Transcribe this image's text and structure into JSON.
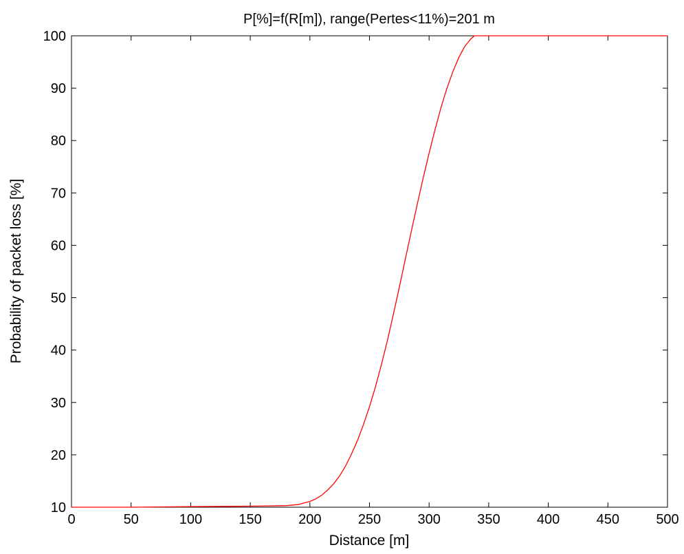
{
  "chart_data": {
    "type": "line",
    "title": "P[%]=f(R[m]), range(Pertes<11%)=201 m",
    "xlabel": "Distance [m]",
    "ylabel": "Probability of packet loss [%]",
    "xlim": [
      0,
      500
    ],
    "ylim": [
      10,
      100
    ],
    "xticks": [
      0,
      50,
      100,
      150,
      200,
      250,
      300,
      350,
      400,
      450,
      500
    ],
    "yticks": [
      10,
      20,
      30,
      40,
      50,
      60,
      70,
      80,
      90,
      100
    ],
    "grid": false,
    "legend": "none",
    "colors": {
      "series": "#ff0000",
      "axes": "#000000",
      "background": "#ffffff"
    },
    "series": [
      {
        "x": [
          0,
          50,
          100,
          150,
          180,
          190,
          195,
          200,
          205,
          210,
          215,
          220,
          225,
          230,
          235,
          240,
          245,
          250,
          255,
          260,
          265,
          270,
          275,
          280,
          285,
          290,
          295,
          300,
          305,
          310,
          315,
          320,
          325,
          330,
          335,
          338,
          340,
          350,
          400,
          450,
          500
        ],
        "y": [
          10,
          10,
          10.1,
          10.2,
          10.3,
          10.5,
          10.8,
          11.1,
          11.6,
          12.3,
          13.3,
          14.5,
          16.0,
          17.9,
          20.2,
          22.8,
          25.8,
          29.2,
          33.0,
          37.2,
          41.8,
          46.8,
          52.0,
          57.3,
          62.6,
          67.8,
          72.8,
          77.6,
          82.1,
          86.3,
          90.0,
          93.2,
          95.9,
          98.0,
          99.4,
          100,
          100,
          100,
          100,
          100,
          100
        ]
      }
    ]
  }
}
